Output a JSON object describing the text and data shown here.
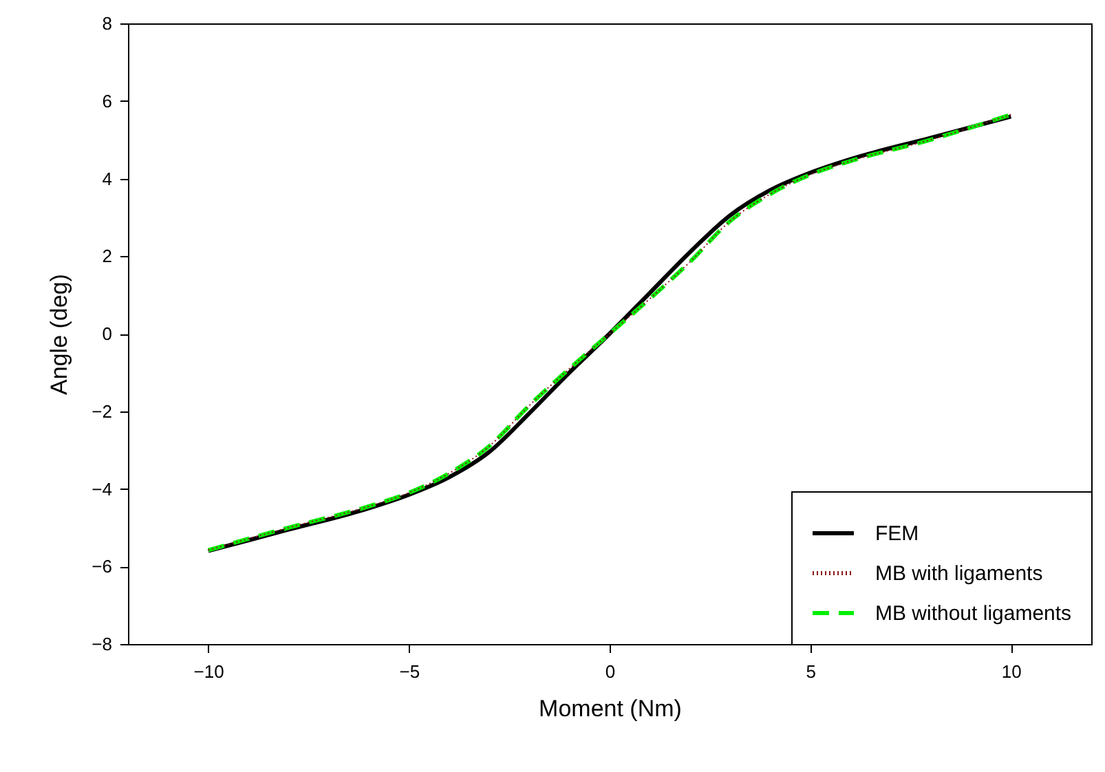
{
  "chart_data": {
    "type": "line",
    "xlabel": "Moment (Nm)",
    "ylabel": "Angle (deg)",
    "x": [
      -10,
      -8,
      -6,
      -5,
      -4,
      -3,
      -2,
      -1,
      0,
      1,
      2,
      3,
      4,
      5,
      6,
      8,
      10
    ],
    "xlim": [
      -12,
      12
    ],
    "xticks": [
      -10,
      -5,
      0,
      5,
      10
    ],
    "ylim": [
      -8,
      8
    ],
    "yticks": [
      -8,
      -6,
      -4,
      -2,
      0,
      2,
      4,
      6,
      8
    ],
    "grid": false,
    "legend": "bottom right",
    "series": [
      {
        "name": "FEM",
        "color": "#000000",
        "line_style": "solid",
        "values": [
          -5.6,
          -5.05,
          -4.5,
          -4.15,
          -3.7,
          -3.05,
          -2.05,
          -1.0,
          0,
          1.05,
          2.1,
          3.05,
          3.7,
          4.15,
          4.5,
          5.05,
          5.6
        ]
      },
      {
        "name": "MB with ligaments",
        "color": "#8b1a1a",
        "line_style": "dotted",
        "values": [
          -5.58,
          -5.0,
          -4.45,
          -4.1,
          -3.6,
          -2.9,
          -1.85,
          -0.9,
          0,
          0.9,
          1.85,
          2.9,
          3.6,
          4.1,
          4.45,
          5.0,
          5.65
        ]
      },
      {
        "name": "MB without ligaments",
        "color": "#00ee00",
        "line_style": "dashed",
        "values": [
          -5.58,
          -5.0,
          -4.45,
          -4.1,
          -3.6,
          -2.9,
          -1.85,
          -0.9,
          0,
          0.9,
          1.85,
          2.9,
          3.6,
          4.1,
          4.45,
          5.0,
          5.65
        ]
      }
    ]
  }
}
